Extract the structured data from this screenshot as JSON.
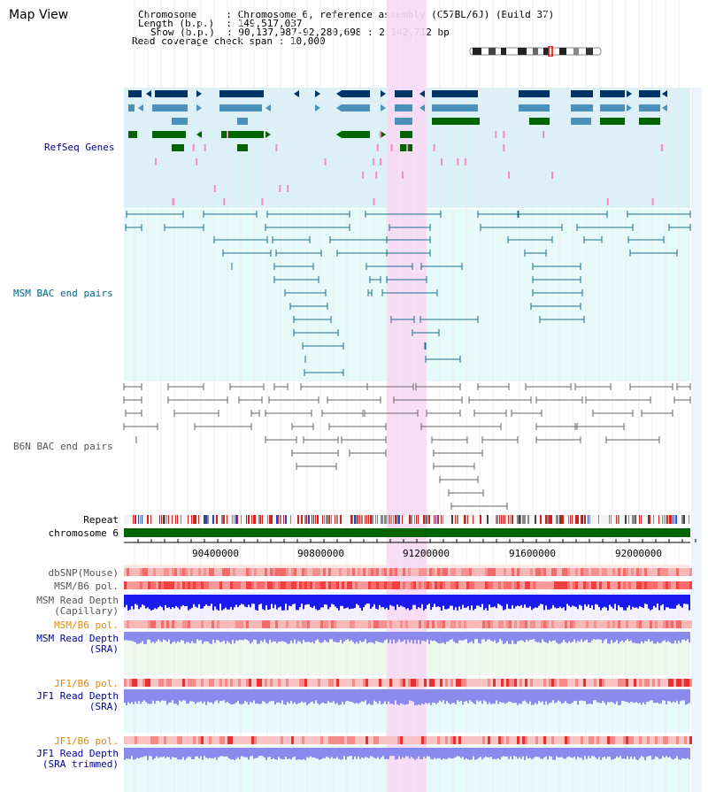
{
  "title": "Map View",
  "info": {
    "chromosome_label": "Chromosome",
    "chromosome_value": "Chromosome 6, reference assembly (C57BL/6J) (Build 37)",
    "length_label": "Length (b.p.)",
    "length_value": "149,517,037",
    "show_label": "Show (b.p.)",
    "show_value": "90,137,987-92,280,698 : 2,142,712 bp",
    "span_label": "Read coverage check span",
    "span_value": "10,000"
  },
  "tracks": {
    "refseq": "RefSeq Genes",
    "msm_bac": "MSM BAC end pairs",
    "b6n_bac": "B6N BAC end pairs",
    "repeat": "Repeat",
    "chromosome": "chromosome 6",
    "dbsnp": "dbSNP(Mouse)",
    "msm_pol": "MSM/B6 pol.",
    "msm_depth_cap_1": "MSM Read Depth",
    "msm_depth_cap_2": "(Capillary)",
    "msm_pol2": "MSM/B6 pol.",
    "msm_depth_sra_1": "MSM Read Depth",
    "msm_depth_sra_2": "(SRA)",
    "jf1_pol": "JF1/B6 pol.",
    "jf1_depth_sra_1": "JF1 Read Depth",
    "jf1_depth_sra_2": "(SRA)",
    "jf1_pol2": "JF1/B6 pol.",
    "jf1_depth_trim_1": "JF1 Read Depth",
    "jf1_depth_trim_2": "(SRA trimmed)"
  },
  "axis": {
    "ticks": [
      "90400000",
      "90800000",
      "91200000",
      "91600000",
      "92000000"
    ]
  },
  "colors": {
    "refseq_bg": "#dcf0f8",
    "msm_bg": "#e6fafa",
    "highlight": "#f8d8f4",
    "chrom_green": "#006400",
    "blue_dark": "#003366",
    "blue_light": "#4a90b8",
    "gene_green": "#006400",
    "label_blue": "#000099",
    "label_teal": "#006688",
    "label_orange": "#e08a00"
  }
}
